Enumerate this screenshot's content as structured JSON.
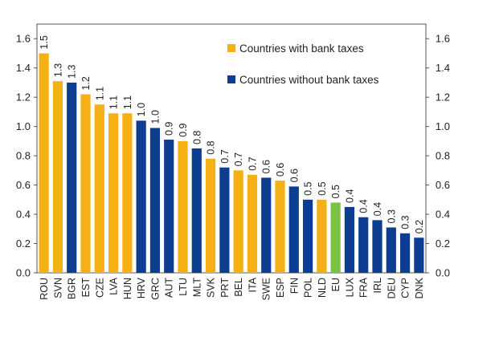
{
  "chart_data": {
    "type": "bar",
    "title": "",
    "xlabel": "",
    "ylabel": "",
    "ylim": [
      0,
      1.7
    ],
    "yticks": [
      "0.0",
      "0.2",
      "0.4",
      "0.6",
      "0.8",
      "1.0",
      "1.2",
      "1.4",
      "1.6"
    ],
    "right_axis": true,
    "categories": [
      "ROU",
      "SVN",
      "BGR",
      "EST",
      "CZE",
      "LVA",
      "HUN",
      "HRV",
      "GRC",
      "AUT",
      "LTU",
      "MLT",
      "SVK",
      "PRT",
      "BEL",
      "ITA",
      "SWE",
      "ESP",
      "FIN",
      "POL",
      "NLD",
      "EU",
      "LUX",
      "FRA",
      "IRL",
      "DEU",
      "CYP",
      "DNK"
    ],
    "values": [
      1.5,
      1.31,
      1.3,
      1.22,
      1.15,
      1.09,
      1.09,
      1.04,
      0.99,
      0.91,
      0.9,
      0.85,
      0.78,
      0.72,
      0.7,
      0.67,
      0.65,
      0.63,
      0.59,
      0.5,
      0.5,
      0.48,
      0.45,
      0.38,
      0.36,
      0.31,
      0.27,
      0.24
    ],
    "data_labels": [
      "1.5",
      "1.3",
      "1.3",
      "1.2",
      "1.1",
      "1.1",
      "1.1",
      "1.0",
      "1.0",
      "0.9",
      "0.9",
      "0.8",
      "0.8",
      "0.7",
      "0.7",
      "0.7",
      "0.6",
      "0.6",
      "0.6",
      "0.5",
      "0.5",
      "0.5",
      "0.4",
      "0.4",
      "0.4",
      "0.3",
      "0.3",
      "0.2"
    ],
    "groups": [
      "tax",
      "tax",
      "notax",
      "tax",
      "tax",
      "tax",
      "tax",
      "notax",
      "notax",
      "notax",
      "tax",
      "notax",
      "tax",
      "notax",
      "tax",
      "tax",
      "notax",
      "tax",
      "notax",
      "notax",
      "tax",
      "eu",
      "notax",
      "notax",
      "notax",
      "notax",
      "notax",
      "notax"
    ],
    "legend": {
      "placement": "top-right",
      "entries": [
        {
          "key": "tax",
          "label": "Countries with bank taxes"
        },
        {
          "key": "notax",
          "label": "Countries without bank taxes"
        }
      ]
    },
    "colors": {
      "tax": "#F5B015",
      "notax": "#0D3D91",
      "eu": "#7CC242"
    }
  }
}
